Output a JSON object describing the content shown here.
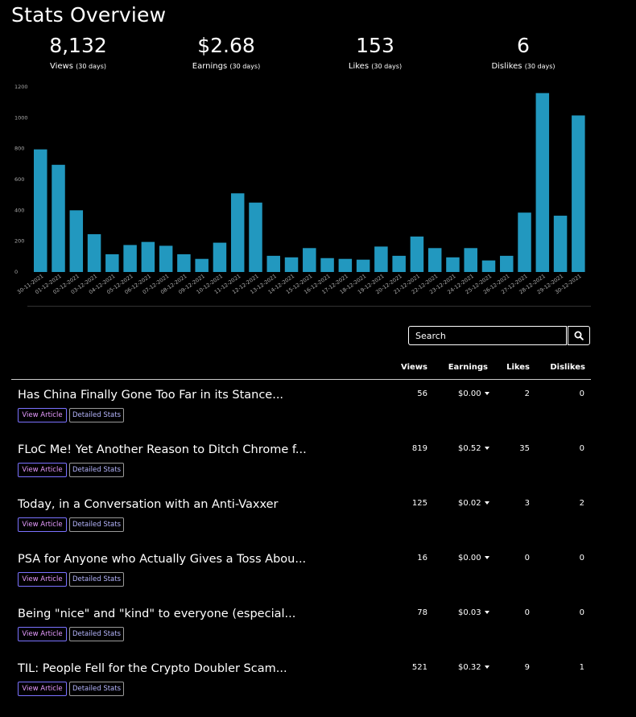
{
  "page_title": "Stats Overview",
  "kpis": [
    {
      "value": "8,132",
      "label": "Views",
      "period": "(30 days)"
    },
    {
      "value": "$2.68",
      "label": "Earnings",
      "period": "(30 days)"
    },
    {
      "value": "153",
      "label": "Likes",
      "period": "(30 days)"
    },
    {
      "value": "6",
      "label": "Dislikes",
      "period": "(30 days)"
    }
  ],
  "chart_data": {
    "type": "bar",
    "title": "",
    "xlabel": "",
    "ylabel": "",
    "ylim": [
      0,
      1200
    ],
    "yticks": [
      0,
      200,
      400,
      600,
      800,
      1000,
      1200
    ],
    "grid": false,
    "bar_color": "#2298bf",
    "categories": [
      "30-11-2021",
      "01-12-2021",
      "02-12-2021",
      "03-12-2021",
      "04-12-2021",
      "05-12-2021",
      "06-12-2021",
      "07-12-2021",
      "08-12-2021",
      "09-12-2021",
      "10-12-2021",
      "11-12-2021",
      "12-12-2021",
      "13-12-2021",
      "14-12-2021",
      "15-12-2021",
      "16-12-2021",
      "17-12-2021",
      "18-12-2021",
      "19-12-2021",
      "20-12-2021",
      "21-12-2021",
      "22-12-2021",
      "23-12-2021",
      "24-12-2021",
      "25-12-2021",
      "26-12-2021",
      "27-12-2021",
      "28-12-2021",
      "29-12-2021",
      "30-12-2021"
    ],
    "values": [
      795,
      695,
      400,
      245,
      115,
      175,
      195,
      170,
      115,
      85,
      190,
      510,
      450,
      105,
      95,
      155,
      90,
      85,
      80,
      165,
      105,
      230,
      155,
      95,
      155,
      75,
      105,
      385,
      1160,
      365,
      1015
    ]
  },
  "search": {
    "placeholder": "Search"
  },
  "table": {
    "headers": {
      "views": "Views",
      "earnings": "Earnings",
      "likes": "Likes",
      "dislikes": "Dislikes"
    },
    "view_label": "View Article",
    "stats_label": "Detailed Stats",
    "rows": [
      {
        "title": "Has China Finally Gone Too Far in its Stance...",
        "views": "56",
        "earnings": "$0.00",
        "likes": "2",
        "dislikes": "0"
      },
      {
        "title": "FLoC Me! Yet Another Reason to Ditch Chrome f...",
        "views": "819",
        "earnings": "$0.52",
        "likes": "35",
        "dislikes": "0"
      },
      {
        "title": "Today, in a Conversation with an Anti-Vaxxer",
        "views": "125",
        "earnings": "$0.02",
        "likes": "3",
        "dislikes": "2"
      },
      {
        "title": "PSA for Anyone who Actually Gives a Toss Abou...",
        "views": "16",
        "earnings": "$0.00",
        "likes": "0",
        "dislikes": "0"
      },
      {
        "title": "Being \"nice\" and \"kind\" to everyone (especial...",
        "views": "78",
        "earnings": "$0.03",
        "likes": "0",
        "dislikes": "0"
      },
      {
        "title": "TIL: People Fell for the Crypto Doubler Scam...",
        "views": "521",
        "earnings": "$0.32",
        "likes": "9",
        "dislikes": "1"
      }
    ]
  }
}
